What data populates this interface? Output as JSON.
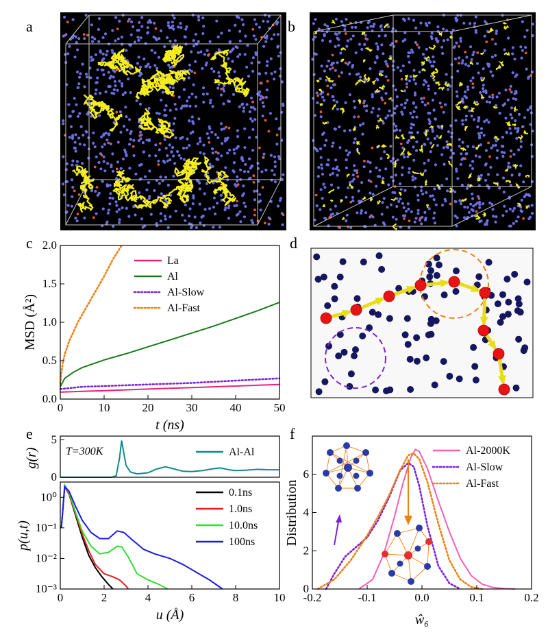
{
  "panels": {
    "a": {
      "letter": "a"
    },
    "b": {
      "letter": "b"
    },
    "c": {
      "letter": "c"
    },
    "d": {
      "letter": "d"
    },
    "e": {
      "letter": "e"
    },
    "f": {
      "letter": "f"
    }
  },
  "chart_data": [
    {
      "id": "c",
      "type": "line",
      "ylabel": "MSD (Å²)",
      "xlabel": "t (ns)",
      "xlim": [
        0,
        50
      ],
      "ylim": [
        0,
        2.0
      ],
      "xticks": [
        "0",
        "10",
        "20",
        "30",
        "40",
        "50"
      ],
      "yticks": [
        "0.0",
        "0.5",
        "1.0",
        "1.5",
        "2.0"
      ],
      "legend_position": "top-center",
      "series": [
        {
          "name": "La",
          "color": "#e8217c",
          "style": "solid",
          "x": [
            0,
            5,
            10,
            20,
            30,
            40,
            50
          ],
          "y": [
            0.09,
            0.1,
            0.11,
            0.13,
            0.15,
            0.17,
            0.19
          ]
        },
        {
          "name": "Al",
          "color": "#1b7a1b",
          "style": "solid",
          "x": [
            0,
            1,
            3,
            5,
            10,
            15,
            20,
            25,
            30,
            35,
            40,
            45,
            50
          ],
          "y": [
            0.16,
            0.27,
            0.35,
            0.41,
            0.51,
            0.59,
            0.68,
            0.77,
            0.86,
            0.95,
            1.05,
            1.15,
            1.26
          ]
        },
        {
          "name": "Al-Slow",
          "color": "#7b1fe0",
          "style": "dotted",
          "x": [
            0,
            5,
            10,
            20,
            30,
            40,
            50
          ],
          "y": [
            0.13,
            0.16,
            0.17,
            0.19,
            0.21,
            0.24,
            0.27
          ]
        },
        {
          "name": "Al-Fast",
          "color": "#f07f12",
          "style": "dotted",
          "x": [
            0,
            0.5,
            1,
            2,
            4,
            6,
            8,
            10,
            12,
            14
          ],
          "y": [
            0.2,
            0.45,
            0.58,
            0.75,
            1.0,
            1.2,
            1.4,
            1.6,
            1.82,
            2.0
          ]
        }
      ]
    },
    {
      "id": "e-top",
      "type": "line",
      "ylabel": "g(r)",
      "annotation": "T=300K",
      "xlim": [
        0,
        10
      ],
      "ylim": [
        0,
        5.5
      ],
      "yticks": [
        "0",
        "5"
      ],
      "series": [
        {
          "name": "Al-Al",
          "color": "#0f8a8a",
          "style": "solid",
          "x": [
            0,
            2.35,
            2.55,
            2.7,
            2.8,
            2.9,
            3.0,
            3.2,
            3.5,
            4.0,
            4.4,
            4.8,
            5.2,
            5.6,
            6.0,
            6.5,
            7.0,
            7.3,
            7.7,
            8.0,
            8.5,
            9.0,
            9.5,
            10
          ],
          "y": [
            0,
            0,
            0.2,
            2.5,
            4.9,
            3.2,
            1.6,
            0.7,
            0.45,
            0.6,
            1.1,
            1.4,
            1.1,
            0.8,
            0.75,
            0.9,
            1.15,
            1.25,
            1.0,
            0.9,
            0.95,
            1.05,
            1.0,
            1.0
          ]
        }
      ]
    },
    {
      "id": "e-bottom",
      "type": "line",
      "ylabel": "p(u,t)",
      "xlabel": "u (Å)",
      "xlim": [
        0,
        10
      ],
      "ylim_log10": [
        -3,
        0.5
      ],
      "xticks": [
        "0",
        "2",
        "4",
        "6",
        "8",
        "10"
      ],
      "ytick_labels": [
        "10⁰",
        "10⁻¹",
        "10⁻²",
        "10⁻³"
      ],
      "series": [
        {
          "name": "0.1ns",
          "color": "#000000",
          "style": "solid",
          "x": [
            0.05,
            0.2,
            0.4,
            0.7,
            1.0,
            1.3,
            1.6,
            1.9,
            2.2,
            2.4
          ],
          "log10y": [
            -1.0,
            0.35,
            0.1,
            -0.6,
            -1.3,
            -1.9,
            -2.3,
            -2.6,
            -2.85,
            -3.0
          ]
        },
        {
          "name": "1.0ns",
          "color": "#e61c1c",
          "style": "solid",
          "x": [
            0.05,
            0.2,
            0.4,
            0.7,
            1.0,
            1.3,
            1.6,
            2.0,
            2.4,
            2.7,
            3.0,
            3.1
          ],
          "log10y": [
            -1.0,
            0.35,
            0.1,
            -0.55,
            -1.2,
            -1.75,
            -2.2,
            -2.5,
            -2.6,
            -2.7,
            -2.9,
            -3.0
          ]
        },
        {
          "name": "10.0ns",
          "color": "#2de02d",
          "style": "solid",
          "x": [
            0.05,
            0.2,
            0.4,
            0.7,
            1.0,
            1.4,
            1.8,
            2.2,
            2.6,
            2.8,
            3.1,
            3.5,
            4.0,
            4.5,
            4.9
          ],
          "log10y": [
            -1.0,
            0.4,
            0.15,
            -0.5,
            -1.1,
            -1.6,
            -1.85,
            -1.8,
            -1.6,
            -1.62,
            -1.95,
            -2.5,
            -2.7,
            -2.85,
            -3.0
          ]
        },
        {
          "name": "100ns",
          "color": "#1a1ae6",
          "style": "solid",
          "x": [
            0.05,
            0.2,
            0.4,
            0.7,
            1.0,
            1.4,
            1.8,
            2.2,
            2.6,
            2.9,
            3.3,
            3.8,
            4.3,
            5.0,
            5.6,
            6.2,
            6.8,
            7.2,
            7.4
          ],
          "log10y": [
            -1.0,
            0.35,
            0.2,
            -0.3,
            -0.75,
            -1.15,
            -1.35,
            -1.35,
            -1.1,
            -1.15,
            -1.4,
            -1.7,
            -1.85,
            -2.0,
            -2.2,
            -2.45,
            -2.7,
            -2.9,
            -3.0
          ]
        }
      ]
    },
    {
      "id": "f",
      "type": "line",
      "ylabel": "Distribution",
      "xlabel": "ŵ₆",
      "xlim": [
        -0.2,
        0.2
      ],
      "ylim": [
        0,
        8
      ],
      "xticks": [
        "-0.2",
        "-0.1",
        "0.0",
        "0.1",
        "0.2"
      ],
      "yticks": [
        "0",
        "2",
        "4",
        "6"
      ],
      "legend_position": "top-right",
      "series": [
        {
          "name": "Al-2000K",
          "color": "#f25fb7",
          "style": "solid",
          "x": [
            -0.115,
            -0.09,
            -0.07,
            -0.05,
            -0.035,
            -0.02,
            -0.012,
            -0.005,
            0.01,
            0.03,
            0.05,
            0.07,
            0.09,
            0.11,
            0.13,
            0.15,
            0.17
          ],
          "y": [
            0,
            0.5,
            1.8,
            3.8,
            5.5,
            6.9,
            7.3,
            7.2,
            6.3,
            4.6,
            3.0,
            1.6,
            0.7,
            0.25,
            0.08,
            0.02,
            0
          ]
        },
        {
          "name": "Al-Slow",
          "color": "#7b1fe0",
          "style": "dotted",
          "x": [
            -0.175,
            -0.16,
            -0.14,
            -0.12,
            -0.1,
            -0.08,
            -0.06,
            -0.04,
            -0.025,
            -0.015,
            -0.005,
            0.01,
            0.03,
            0.05,
            0.07
          ],
          "y": [
            0,
            0.8,
            1.7,
            2.2,
            2.7,
            3.6,
            4.8,
            6.2,
            6.6,
            6.4,
            5.4,
            3.3,
            1.2,
            0.3,
            0
          ]
        },
        {
          "name": "Al-Fast",
          "color": "#f07f12",
          "style": "dotted",
          "x": [
            -0.19,
            -0.16,
            -0.13,
            -0.1,
            -0.08,
            -0.06,
            -0.04,
            -0.025,
            -0.015,
            -0.005,
            0.01,
            0.03,
            0.05,
            0.07,
            0.09,
            0.11
          ],
          "y": [
            0,
            0.5,
            1.5,
            2.8,
            3.8,
            4.9,
            6.2,
            7.0,
            7.1,
            6.8,
            5.6,
            3.4,
            1.5,
            0.5,
            0.1,
            0
          ]
        }
      ]
    }
  ],
  "legend_c": [
    {
      "label": "La",
      "color": "#e8217c",
      "style": "solid"
    },
    {
      "label": "Al",
      "color": "#1b7a1b",
      "style": "solid"
    },
    {
      "label": "Al-Slow",
      "color": "#7b1fe0",
      "style": "dotted"
    },
    {
      "label": "Al-Fast",
      "color": "#f07f12",
      "style": "dotted"
    }
  ],
  "legend_e_top": [
    {
      "label": "Al-Al",
      "color": "#0f8a8a",
      "style": "solid"
    }
  ],
  "legend_e_bottom": [
    {
      "label": "0.1ns",
      "color": "#000000",
      "style": "solid"
    },
    {
      "label": "1.0ns",
      "color": "#e61c1c",
      "style": "solid"
    },
    {
      "label": "10.0ns",
      "color": "#2de02d",
      "style": "solid"
    },
    {
      "label": "100ns",
      "color": "#1a1ae6",
      "style": "solid"
    }
  ],
  "legend_f": [
    {
      "label": "Al-2000K",
      "color": "#f25fb7",
      "style": "solid"
    },
    {
      "label": "Al-Slow",
      "color": "#7b1fe0",
      "style": "dotted"
    },
    {
      "label": "Al-Fast",
      "color": "#f07f12",
      "style": "dotted"
    }
  ],
  "colors": {
    "atom_blue": "#6a6ee0",
    "atom_red": "#e05a3a",
    "trajectory_yellow": "#f5ee1e",
    "box_edge": "#c8c8c8"
  }
}
